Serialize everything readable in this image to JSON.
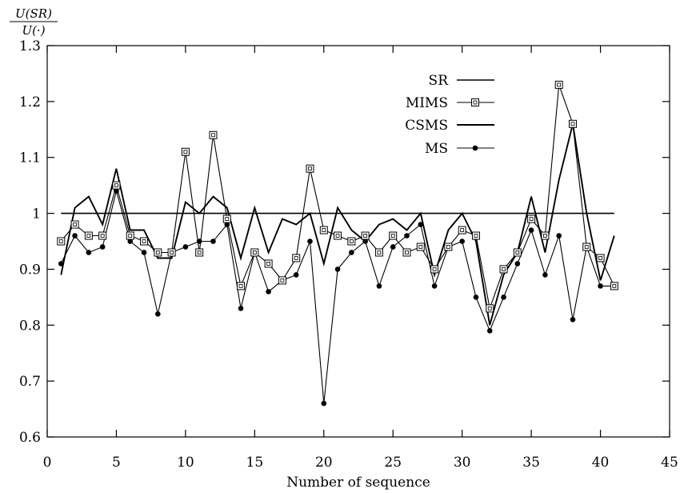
{
  "chart_data": {
    "type": "line",
    "ylabel_numerator": "U(SR)",
    "ylabel_denominator": "U(·)",
    "xlabel": "Number of sequence",
    "xlim": [
      0,
      45
    ],
    "ylim": [
      0.6,
      1.3
    ],
    "xticks": [
      0,
      5,
      10,
      15,
      20,
      25,
      30,
      35,
      40,
      45
    ],
    "yticks": [
      0.6,
      0.7,
      0.8,
      0.9,
      1,
      1.1,
      1.2,
      1.3
    ],
    "ytick_labels": [
      "0.6",
      "0.7",
      "0.8",
      "0.9",
      "1",
      "1.1",
      "1.2",
      "1.3"
    ],
    "grid": false,
    "legend_position": "top-right",
    "x": [
      1,
      2,
      3,
      4,
      5,
      6,
      7,
      8,
      9,
      10,
      11,
      12,
      13,
      14,
      15,
      16,
      17,
      18,
      19,
      20,
      21,
      22,
      23,
      24,
      25,
      26,
      27,
      28,
      29,
      30,
      31,
      32,
      33,
      34,
      35,
      36,
      37,
      38,
      39,
      40,
      41
    ],
    "series": [
      {
        "name": "SR",
        "marker": "none",
        "color": "#000000",
        "values": [
          1,
          1,
          1,
          1,
          1,
          1,
          1,
          1,
          1,
          1,
          1,
          1,
          1,
          1,
          1,
          1,
          1,
          1,
          1,
          1,
          1,
          1,
          1,
          1,
          1,
          1,
          1,
          1,
          1,
          1,
          1,
          1,
          1,
          1,
          1,
          1,
          1,
          1,
          1,
          1,
          1
        ]
      },
      {
        "name": "MIMS",
        "marker": "square",
        "color": "#000000",
        "values": [
          0.95,
          0.98,
          0.96,
          0.96,
          1.05,
          0.96,
          0.95,
          0.93,
          0.93,
          1.11,
          0.93,
          1.14,
          0.99,
          0.87,
          0.93,
          0.91,
          0.88,
          0.92,
          1.08,
          0.97,
          0.96,
          0.95,
          0.96,
          0.93,
          0.96,
          0.93,
          0.94,
          0.9,
          0.94,
          0.97,
          0.96,
          0.83,
          0.9,
          0.93,
          0.99,
          0.96,
          1.23,
          1.16,
          0.94,
          0.92,
          0.87
        ]
      },
      {
        "name": "CSMS",
        "marker": "none",
        "color": "#000000",
        "values": [
          0.89,
          1.01,
          1.03,
          0.98,
          1.08,
          0.97,
          0.97,
          0.92,
          0.92,
          1.02,
          1.0,
          1.03,
          1.01,
          0.92,
          1.01,
          0.93,
          0.99,
          0.98,
          1.0,
          0.91,
          1.01,
          0.97,
          0.95,
          0.98,
          0.99,
          0.97,
          1.0,
          0.89,
          0.97,
          1.0,
          0.95,
          0.8,
          0.89,
          0.93,
          1.03,
          0.93,
          1.06,
          1.16,
          1.0,
          0.88,
          0.96
        ]
      },
      {
        "name": "MS",
        "marker": "dot",
        "color": "#000000",
        "values": [
          0.91,
          0.96,
          0.93,
          0.94,
          1.04,
          0.95,
          0.93,
          0.82,
          0.93,
          0.94,
          0.95,
          0.95,
          0.98,
          0.83,
          0.93,
          0.86,
          0.88,
          0.89,
          0.95,
          0.66,
          0.9,
          0.93,
          0.95,
          0.87,
          0.94,
          0.96,
          0.98,
          0.87,
          0.94,
          0.95,
          0.85,
          0.79,
          0.85,
          0.91,
          0.97,
          0.89,
          0.96,
          0.81,
          0.94,
          0.87,
          0.87
        ]
      }
    ]
  }
}
